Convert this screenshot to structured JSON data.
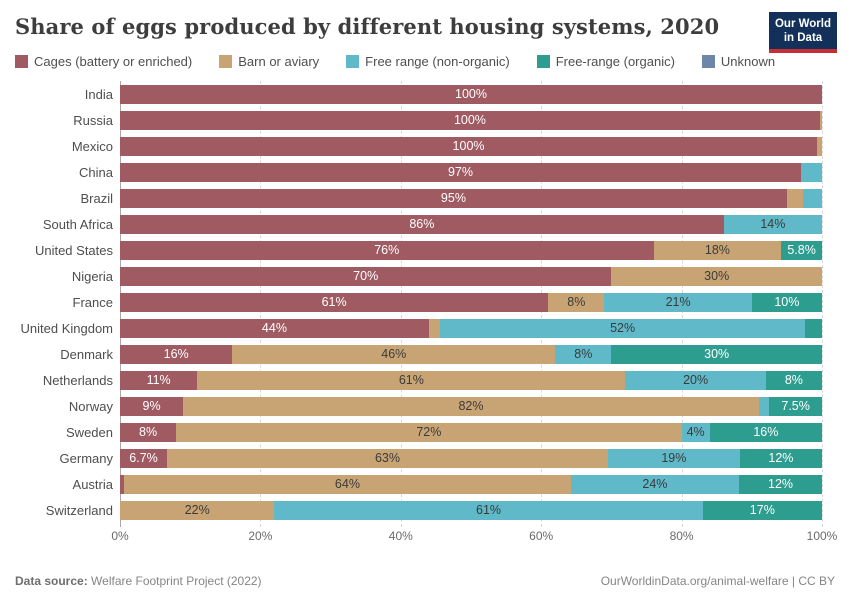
{
  "title": "Share of eggs produced by different housing systems, 2020",
  "logo": {
    "line1": "Our World",
    "line2": "in Data"
  },
  "colors": {
    "cages": "#a05a62",
    "barn": "#c8a474",
    "free": "#5fb9c8",
    "org": "#2d9d8f",
    "unknown": "#6e87a9",
    "label_dark": "#3b3b3b",
    "label_light": "#ffffff",
    "logo_bg": "#12305a",
    "logo_red": "#c52f34"
  },
  "legend": [
    {
      "label": "Cages (battery or enriched)",
      "color_key": "cages"
    },
    {
      "label": "Barn or aviary",
      "color_key": "barn"
    },
    {
      "label": "Free range (non-organic)",
      "color_key": "free"
    },
    {
      "label": "Free-range (organic)",
      "color_key": "org"
    },
    {
      "label": "Unknown",
      "color_key": "unknown"
    }
  ],
  "chart_data": {
    "type": "bar",
    "stacked": true,
    "orientation": "horizontal",
    "unit": "%",
    "xlim": [
      0,
      100
    ],
    "x_ticks": [
      "0%",
      "20%",
      "40%",
      "60%",
      "80%",
      "100%"
    ],
    "series_names": [
      "Cages (battery or enriched)",
      "Barn or aviary",
      "Free range (non-organic)",
      "Free-range (organic)",
      "Unknown"
    ],
    "rows": [
      {
        "country": "India",
        "segments": [
          {
            "t": "cages",
            "w": 100,
            "label": "100%"
          }
        ]
      },
      {
        "country": "Russia",
        "segments": [
          {
            "t": "cages",
            "w": 99.7,
            "label": "100%"
          },
          {
            "t": "barn",
            "w": 0.3,
            "label": ""
          }
        ]
      },
      {
        "country": "Mexico",
        "segments": [
          {
            "t": "cages",
            "w": 99.3,
            "label": "100%"
          },
          {
            "t": "barn",
            "w": 0.7,
            "label": ""
          }
        ]
      },
      {
        "country": "China",
        "segments": [
          {
            "t": "cages",
            "w": 97,
            "label": "97%"
          },
          {
            "t": "free",
            "w": 3,
            "label": ""
          }
        ]
      },
      {
        "country": "Brazil",
        "segments": [
          {
            "t": "cages",
            "w": 95,
            "label": "95%"
          },
          {
            "t": "barn",
            "w": 2.3,
            "label": ""
          },
          {
            "t": "free",
            "w": 2.7,
            "label": ""
          }
        ]
      },
      {
        "country": "South Africa",
        "segments": [
          {
            "t": "cages",
            "w": 86,
            "label": "86%"
          },
          {
            "t": "free",
            "w": 14,
            "label": "14%"
          }
        ]
      },
      {
        "country": "United States",
        "segments": [
          {
            "t": "cages",
            "w": 76,
            "label": "76%"
          },
          {
            "t": "barn",
            "w": 18.2,
            "label": "18%"
          },
          {
            "t": "org",
            "w": 5.8,
            "label": "5.8%"
          }
        ]
      },
      {
        "country": "Nigeria",
        "segments": [
          {
            "t": "cages",
            "w": 70,
            "label": "70%"
          },
          {
            "t": "barn",
            "w": 30,
            "label": "30%"
          }
        ]
      },
      {
        "country": "France",
        "segments": [
          {
            "t": "cages",
            "w": 61,
            "label": "61%"
          },
          {
            "t": "barn",
            "w": 8,
            "label": "8%"
          },
          {
            "t": "free",
            "w": 21,
            "label": "21%"
          },
          {
            "t": "org",
            "w": 10,
            "label": "10%"
          }
        ]
      },
      {
        "country": "United Kingdom",
        "segments": [
          {
            "t": "cages",
            "w": 44,
            "label": "44%"
          },
          {
            "t": "barn",
            "w": 1.6,
            "label": ""
          },
          {
            "t": "free",
            "w": 52,
            "label": "52%"
          },
          {
            "t": "org",
            "w": 2.4,
            "label": ""
          }
        ]
      },
      {
        "country": "Denmark",
        "segments": [
          {
            "t": "cages",
            "w": 16,
            "label": "16%"
          },
          {
            "t": "barn",
            "w": 46,
            "label": "46%"
          },
          {
            "t": "free",
            "w": 8,
            "label": "8%"
          },
          {
            "t": "org",
            "w": 30,
            "label": "30%"
          }
        ]
      },
      {
        "country": "Netherlands",
        "segments": [
          {
            "t": "cages",
            "w": 11,
            "label": "11%"
          },
          {
            "t": "barn",
            "w": 61,
            "label": "61%"
          },
          {
            "t": "free",
            "w": 20,
            "label": "20%"
          },
          {
            "t": "org",
            "w": 8,
            "label": "8%"
          }
        ]
      },
      {
        "country": "Norway",
        "segments": [
          {
            "t": "cages",
            "w": 9,
            "label": "9%"
          },
          {
            "t": "barn",
            "w": 82,
            "label": "82%"
          },
          {
            "t": "free",
            "w": 1.5,
            "label": ""
          },
          {
            "t": "org",
            "w": 7.5,
            "label": "7.5%"
          }
        ]
      },
      {
        "country": "Sweden",
        "segments": [
          {
            "t": "cages",
            "w": 8,
            "label": "8%"
          },
          {
            "t": "barn",
            "w": 72,
            "label": "72%"
          },
          {
            "t": "free",
            "w": 4,
            "label": "4%"
          },
          {
            "t": "org",
            "w": 16,
            "label": "16%"
          }
        ]
      },
      {
        "country": "Germany",
        "segments": [
          {
            "t": "cages",
            "w": 6.7,
            "label": "6.7%"
          },
          {
            "t": "barn",
            "w": 62.8,
            "label": "63%"
          },
          {
            "t": "free",
            "w": 18.8,
            "label": "19%"
          },
          {
            "t": "org",
            "w": 11.7,
            "label": "12%"
          }
        ]
      },
      {
        "country": "Austria",
        "segments": [
          {
            "t": "cages",
            "w": 0.6,
            "label": ""
          },
          {
            "t": "barn",
            "w": 63.6,
            "label": "64%"
          },
          {
            "t": "free",
            "w": 24,
            "label": "24%"
          },
          {
            "t": "org",
            "w": 11.8,
            "label": "12%"
          }
        ]
      },
      {
        "country": "Switzerland",
        "segments": [
          {
            "t": "barn",
            "w": 22,
            "label": "22%"
          },
          {
            "t": "free",
            "w": 61,
            "label": "61%"
          },
          {
            "t": "org",
            "w": 17,
            "label": "17%"
          }
        ]
      }
    ]
  },
  "footer": {
    "source_label": "Data source:",
    "source_text": " Welfare Footprint Project (2022)",
    "right_text": "OurWorldinData.org/animal-welfare | CC BY"
  }
}
